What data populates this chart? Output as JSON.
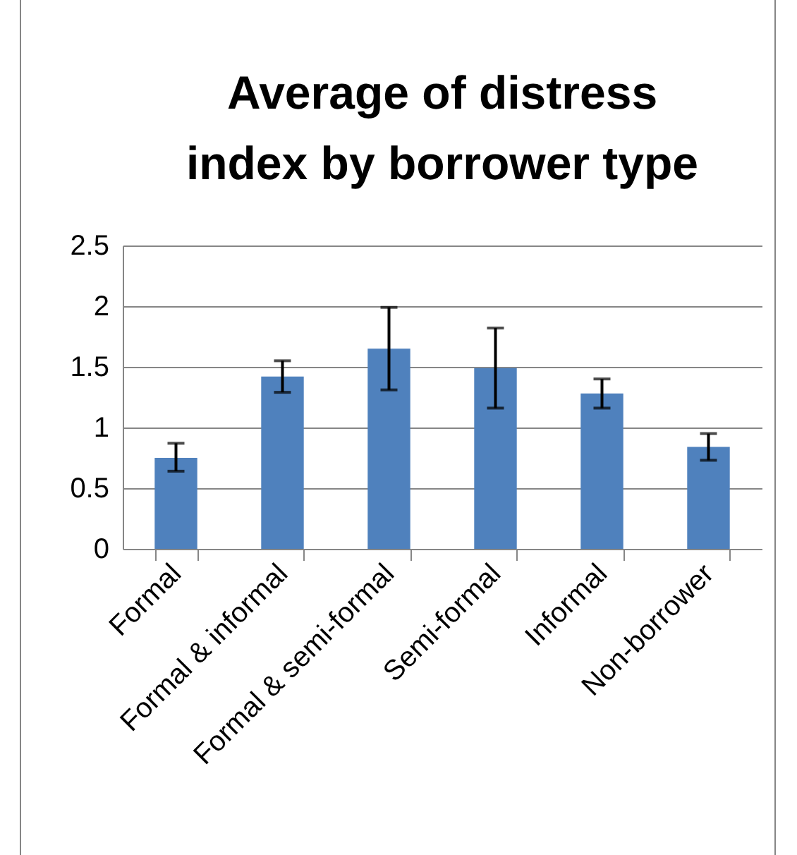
{
  "chart_data": {
    "type": "bar",
    "title": "Average of distress index by borrower type",
    "categories": [
      "Formal",
      "Formal & informal",
      "Formal & semi-formal",
      "Semi-formal",
      "Informal",
      "Non-borrower"
    ],
    "values": [
      0.75,
      1.42,
      1.65,
      1.49,
      1.28,
      0.84
    ],
    "errors": [
      [
        0.64,
        0.87
      ],
      [
        1.29,
        1.55
      ],
      [
        1.31,
        1.99
      ],
      [
        1.16,
        1.82
      ],
      [
        1.16,
        1.4
      ],
      [
        0.73,
        0.95
      ]
    ],
    "color": "#4f81bd",
    "ylim": [
      0,
      2.5
    ],
    "yticks": [
      0,
      0.5,
      1,
      1.5,
      2,
      2.5
    ],
    "grid": "y"
  }
}
